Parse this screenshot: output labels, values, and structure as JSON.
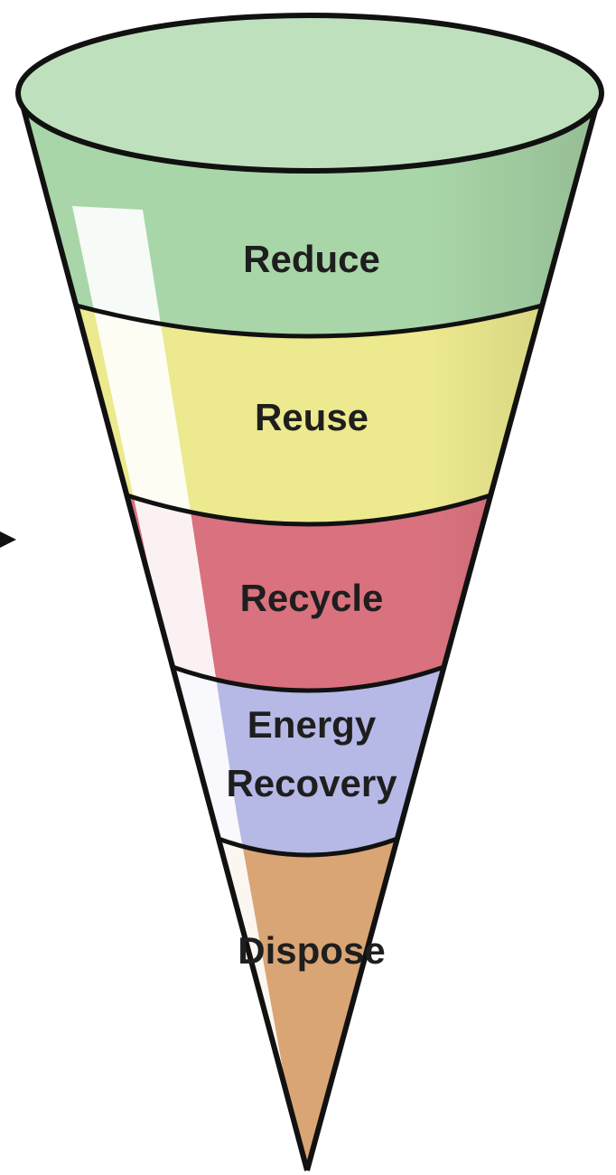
{
  "layers": [
    {
      "lines": [
        "Reduce"
      ]
    },
    {
      "lines": [
        "Reuse"
      ]
    },
    {
      "lines": [
        "Recycle"
      ]
    },
    {
      "lines": [
        "Energy",
        "Recovery"
      ]
    },
    {
      "lines": [
        "Dispose"
      ]
    }
  ]
}
